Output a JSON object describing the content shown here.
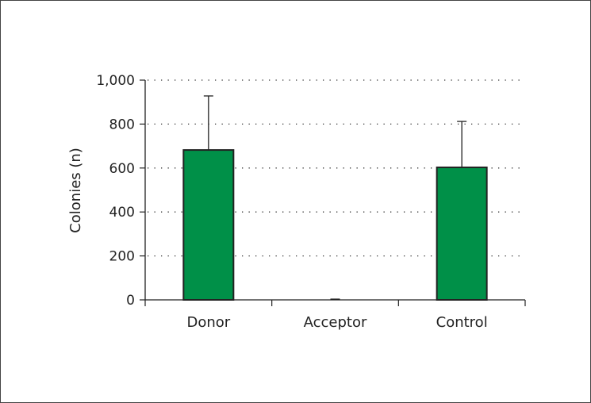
{
  "chart_data": {
    "type": "bar",
    "title": "",
    "xlabel": "",
    "ylabel": "Colonies (n)",
    "categories": [
      "Donor",
      "Acceptor",
      "Control"
    ],
    "values": [
      682,
      0,
      603
    ],
    "error_upper": [
      928,
      null,
      812
    ],
    "ylim": [
      0,
      1000
    ],
    "yticks": [
      0,
      200,
      400,
      600,
      800,
      1000
    ],
    "ytick_labels": [
      "0",
      "200",
      "400",
      "600",
      "800",
      "1,000"
    ],
    "grid": "horizontal dotted",
    "bar_color": "#009048",
    "legend": null
  }
}
